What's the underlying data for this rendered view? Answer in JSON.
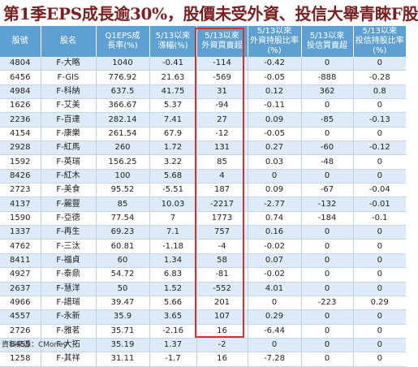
{
  "title": "第1季EPS成長逾30%，股價未受外資、投信大舉青睞F股",
  "headers": [
    "股號",
    "股名",
    "Q1EPS成\n長率(%)",
    "5/13以來\n漲幅(%)",
    "5/13以來\n外資買賣超",
    "5/13以來\n外資持股比率\n(%)",
    "5/13以來\n投信買賣超",
    "5/13以來\n投信持股比率\n(%)"
  ],
  "rows": [
    [
      "4804",
      "F-大略",
      "1040",
      "-0.41",
      "-114",
      "-0.42",
      "0",
      "0"
    ],
    [
      "6456",
      "F-GIS",
      "776.92",
      "21.63",
      "-569",
      "-0.05",
      "-888",
      "-0.28"
    ],
    [
      "4984",
      "F-科納",
      "637.5",
      "41.75",
      "31",
      "0.12",
      "362",
      "0.8"
    ],
    [
      "1626",
      "F-艾美",
      "366.67",
      "5.37",
      "-94",
      "-0.11",
      "0",
      "0"
    ],
    [
      "2236",
      "F-百達",
      "282.14",
      "7.41",
      "27",
      "0.09",
      "-85",
      "-0.13"
    ],
    [
      "4154",
      "F-康樂",
      "261.54",
      "67.9",
      "-12",
      "-0.05",
      "0",
      "0"
    ],
    [
      "2928",
      "F-紅馬",
      "260",
      "1.72",
      "131",
      "0.27",
      "-60",
      "-0.12"
    ],
    [
      "1592",
      "F-英瑞",
      "156.25",
      "3.22",
      "85",
      "0.03",
      "-48",
      "0"
    ],
    [
      "8426",
      "F-紅木",
      "100",
      "5.68",
      "4",
      "0",
      "0",
      "0"
    ],
    [
      "2723",
      "F-美食",
      "95.52",
      "-5.51",
      "187",
      "0.09",
      "-67",
      "-0.04"
    ],
    [
      "4137",
      "F-麗豐",
      "85",
      "10.03",
      "-2217",
      "-2.77",
      "-132",
      "-0.01"
    ],
    [
      "1590",
      "F-亞德",
      "77.54",
      "7",
      "1773",
      "0.74",
      "-184",
      "-0.1"
    ],
    [
      "1337",
      "F-再生",
      "69.23",
      "7.1",
      "757",
      "0.16",
      "0",
      "0"
    ],
    [
      "4762",
      "F-三汰",
      "60.81",
      "-1.18",
      "-4",
      "-0.02",
      "0",
      "0"
    ],
    [
      "8411",
      "F-福貞",
      "60",
      "1.34",
      "58",
      "0.07",
      "0",
      "0"
    ],
    [
      "4927",
      "F-泰鼎",
      "54.72",
      "6.83",
      "-81",
      "-0.02",
      "0",
      "0"
    ],
    [
      "2637",
      "F-慧洋",
      "50",
      "1.52",
      "-552",
      "4.01",
      "0",
      "0"
    ],
    [
      "4966",
      "F-譜瑞",
      "39.47",
      "5.66",
      "201",
      "0",
      "-223",
      "0.29"
    ],
    [
      "4557",
      "F-永新",
      "35.9",
      "3.65",
      "107",
      "0.29",
      "0",
      "0"
    ],
    [
      "2726",
      "F-雅茗",
      "35.71",
      "-2.16",
      "16",
      "-6.44",
      "0",
      "0"
    ],
    [
      "8455",
      "F-大拓",
      "35.19",
      "1.37",
      "-2",
      "0",
      "0",
      "0"
    ],
    [
      "1258",
      "F-其祥",
      "31.11",
      "-1.7",
      "16",
      "-7.28",
      "0",
      "0"
    ]
  ],
  "source": "資料來源：CMoney",
  "colors": {
    "title": "#7a1f1f",
    "header_bg": "#5fa0d3",
    "highlight_border": "#d6312f",
    "odd_row": "#dcebf7"
  }
}
